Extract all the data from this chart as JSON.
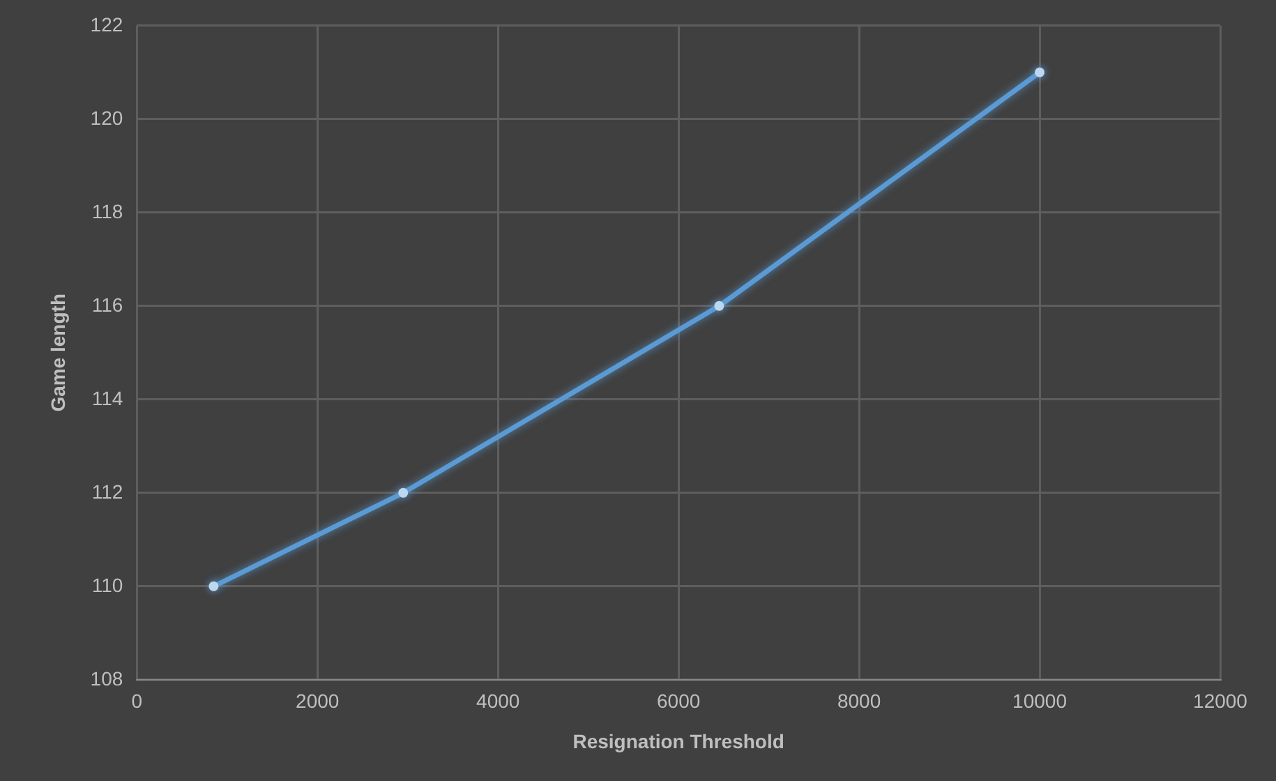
{
  "chart_data": {
    "type": "line",
    "xlabel": "Resignation Threshold",
    "ylabel": "Game length",
    "x": [
      850,
      2950,
      6450,
      10000
    ],
    "series": [
      {
        "color": "#5b9bd5",
        "values": [
          110,
          112,
          116,
          121
        ]
      }
    ],
    "xlim": [
      0,
      12000
    ],
    "xticks": [
      0,
      2000,
      4000,
      6000,
      8000,
      10000,
      12000
    ],
    "ylim": [
      108,
      122
    ],
    "yticks": [
      108,
      110,
      112,
      114,
      116,
      118,
      120,
      122
    ],
    "grid": true,
    "legend": false,
    "marker": "circle",
    "line_style": "solid"
  }
}
